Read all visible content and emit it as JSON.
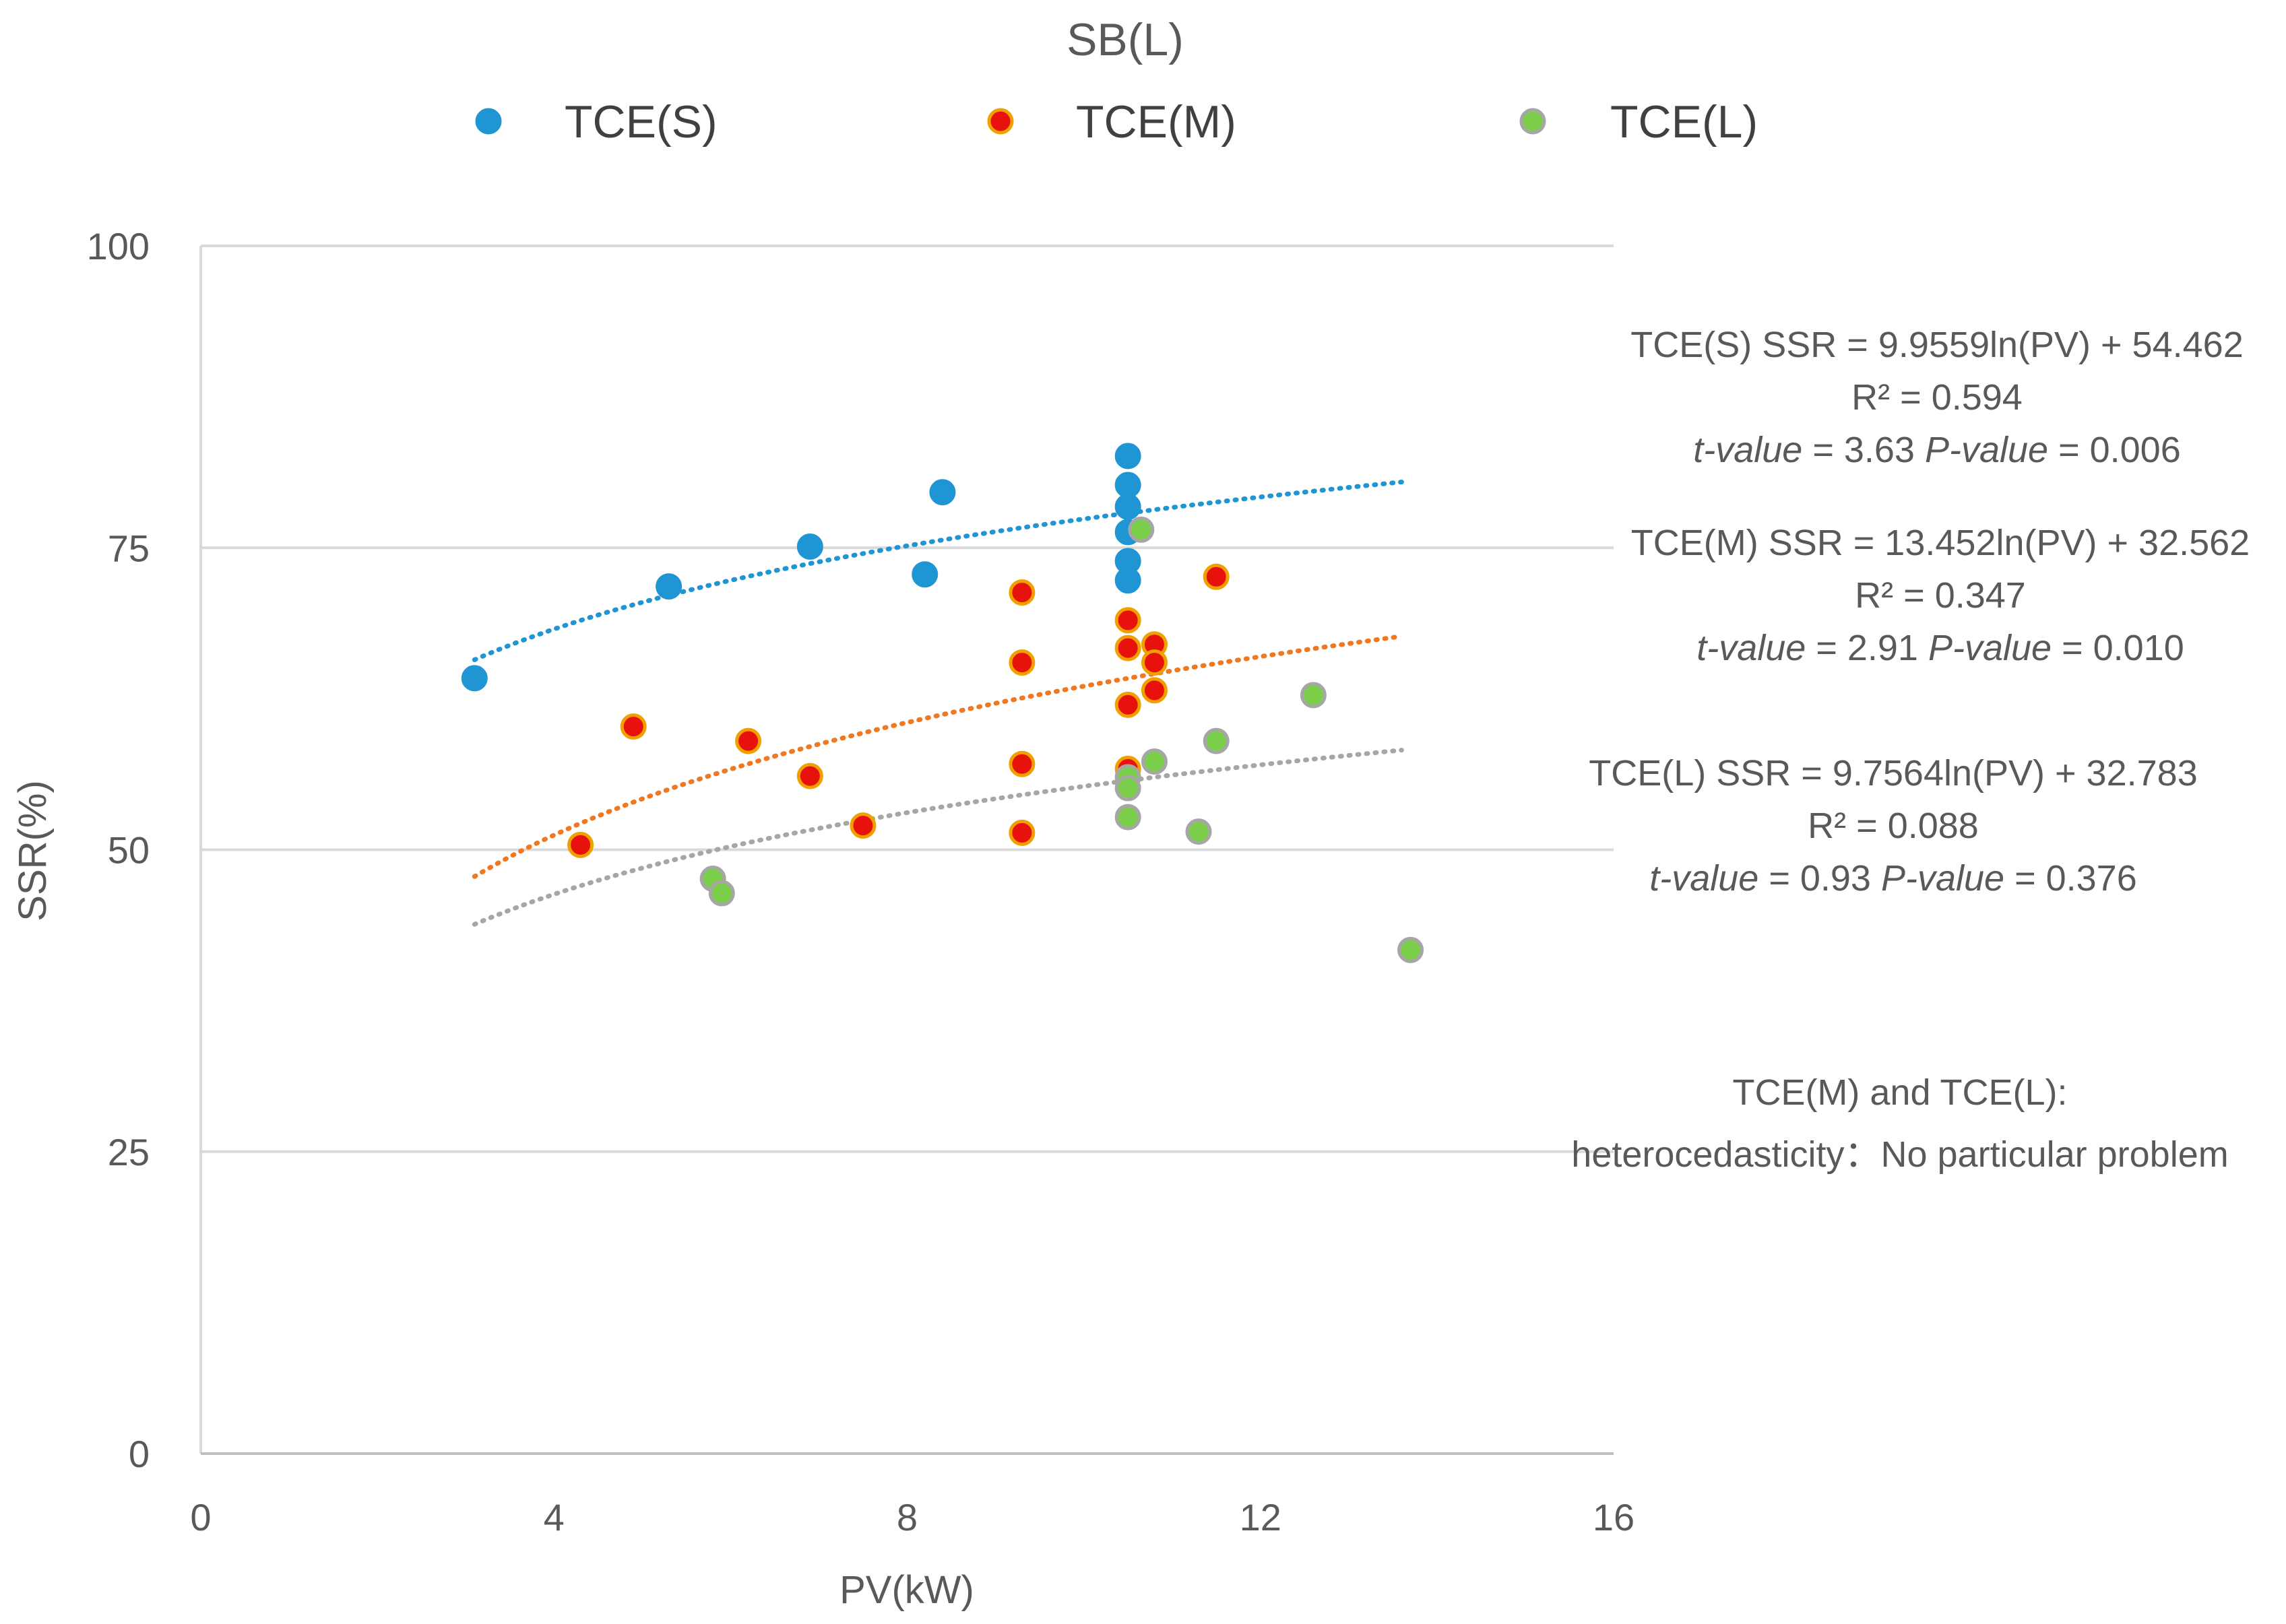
{
  "chart_data": {
    "type": "scatter",
    "title": "SB(L)",
    "xlabel": "PV(kW)",
    "ylabel": "SSR(%)",
    "xlim": [
      0,
      16
    ],
    "ylim": [
      0,
      100
    ],
    "xticks": [
      "0",
      "4",
      "8",
      "12",
      "16"
    ],
    "yticks": [
      "0",
      "25",
      "50",
      "75",
      "100"
    ],
    "grid": "horizontal",
    "legend_position": "top",
    "series": [
      {
        "name": "TCE(S)",
        "color": "#1f96d3",
        "edge": "#1f96d3",
        "points": [
          {
            "x": 3.1,
            "y": 64.2
          },
          {
            "x": 5.3,
            "y": 71.8
          },
          {
            "x": 6.9,
            "y": 75.1
          },
          {
            "x": 8.2,
            "y": 72.8
          },
          {
            "x": 8.4,
            "y": 79.6
          },
          {
            "x": 10.5,
            "y": 82.6
          },
          {
            "x": 10.5,
            "y": 80.2
          },
          {
            "x": 10.5,
            "y": 78.4
          },
          {
            "x": 10.5,
            "y": 76.3
          },
          {
            "x": 10.5,
            "y": 73.9
          },
          {
            "x": 10.5,
            "y": 72.3
          }
        ],
        "trend": {
          "a": 9.9559,
          "b": 54.462,
          "x_from": 3.1,
          "x_to": 13.6,
          "color": "#1f96d3"
        }
      },
      {
        "name": "TCE(M)",
        "color": "#e8120c",
        "edge": "#f0a000",
        "points": [
          {
            "x": 4.3,
            "y": 50.4
          },
          {
            "x": 4.9,
            "y": 60.2
          },
          {
            "x": 6.2,
            "y": 59.0
          },
          {
            "x": 6.9,
            "y": 56.1
          },
          {
            "x": 7.5,
            "y": 52.0
          },
          {
            "x": 9.3,
            "y": 71.3
          },
          {
            "x": 9.3,
            "y": 65.5
          },
          {
            "x": 9.3,
            "y": 57.1
          },
          {
            "x": 9.3,
            "y": 51.4
          },
          {
            "x": 10.5,
            "y": 69.0
          },
          {
            "x": 10.5,
            "y": 66.7
          },
          {
            "x": 10.5,
            "y": 62.0
          },
          {
            "x": 10.5,
            "y": 56.7
          },
          {
            "x": 10.8,
            "y": 67.0
          },
          {
            "x": 10.8,
            "y": 65.5
          },
          {
            "x": 10.8,
            "y": 63.2
          },
          {
            "x": 11.5,
            "y": 72.6
          }
        ],
        "trend": {
          "a": 13.452,
          "b": 32.562,
          "x_from": 3.1,
          "x_to": 13.6,
          "color": "#f07820"
        }
      },
      {
        "name": "TCE(L)",
        "color": "#7ccf4a",
        "edge": "#a6a6a6",
        "points": [
          {
            "x": 5.8,
            "y": 47.6
          },
          {
            "x": 5.9,
            "y": 46.4
          },
          {
            "x": 10.5,
            "y": 56.0
          },
          {
            "x": 10.5,
            "y": 55.1
          },
          {
            "x": 10.5,
            "y": 52.7
          },
          {
            "x": 10.65,
            "y": 76.5
          },
          {
            "x": 10.8,
            "y": 57.3
          },
          {
            "x": 11.3,
            "y": 51.5
          },
          {
            "x": 11.5,
            "y": 59.0
          },
          {
            "x": 12.6,
            "y": 62.8
          },
          {
            "x": 13.7,
            "y": 41.7
          }
        ],
        "trend": {
          "a": 9.7564,
          "b": 32.783,
          "x_from": 3.1,
          "x_to": 13.6,
          "color": "#a6a6a6"
        }
      }
    ],
    "annotations": {
      "s": {
        "eq": "TCE(S)  SSR = 9.9559ln(PV) + 54.462",
        "r2": "R² = 0.594",
        "t_label": "t-value",
        "t_val": " = 3.63  ",
        "p_label": "P-value",
        "p_val": " = 0.006"
      },
      "m": {
        "eq": "TCE(M)  SSR  = 13.452ln(PV) + 32.562",
        "r2": "R² = 0.347",
        "t_label": "t-value",
        "t_val": " = 2.91  ",
        "p_label": "P-value",
        "p_val": " = 0.010"
      },
      "l": {
        "eq": "TCE(L)  SSR = 9.7564ln(PV) + 32.783",
        "r2": "R² = 0.088",
        "t_label": "t-value",
        "t_val": " = 0.93  ",
        "p_label": "P-value",
        "p_val": " = 0.376"
      },
      "note_line1": "TCE(M) and TCE(L):",
      "note_line2": "heterocedasticity：No particular problem"
    }
  }
}
